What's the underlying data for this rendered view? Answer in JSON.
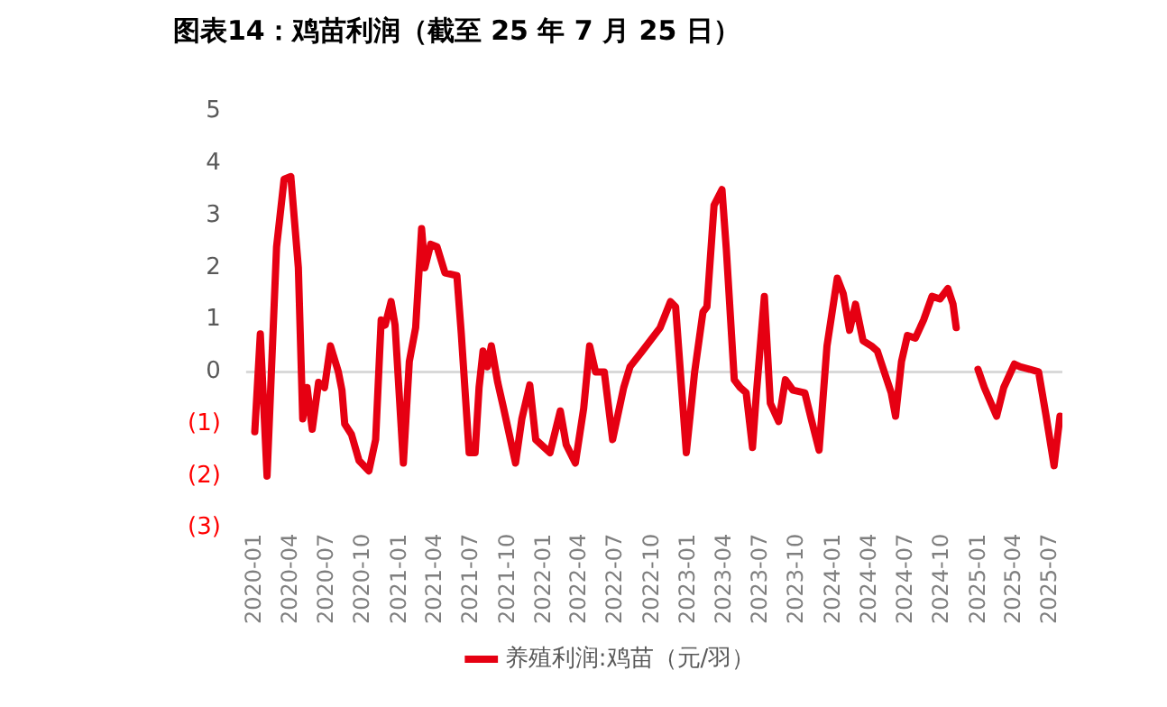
{
  "chart_data": {
    "type": "line",
    "title": "图表14：鸡苗利润（截至 25 年 7 月 25 日）",
    "x": [
      "2020-01-01",
      "2020-01-15",
      "2020-02-01",
      "2020-02-25",
      "2020-03-15",
      "2020-04-01",
      "2020-04-20",
      "2020-05-01",
      "2020-05-12",
      "2020-05-25",
      "2020-06-10",
      "2020-06-25",
      "2020-07-10",
      "2020-07-30",
      "2020-08-08",
      "2020-08-15",
      "2020-09-01",
      "2020-09-20",
      "2020-10-15",
      "2020-11-01",
      "2020-11-15",
      "2020-11-25",
      "2020-12-10",
      "2020-12-20",
      "2021-01-10",
      "2021-01-25",
      "2021-02-10",
      "2021-02-25",
      "2021-03-05",
      "2021-03-20",
      "2021-04-05",
      "2021-04-25",
      "2021-05-25",
      "2021-06-05",
      "2021-06-25",
      "2021-07-10",
      "2021-07-20",
      "2021-07-30",
      "2021-08-10",
      "2021-08-20",
      "2021-09-05",
      "2021-09-20",
      "2021-10-20",
      "2021-11-05",
      "2021-11-25",
      "2021-12-10",
      "2022-01-15",
      "2022-02-10",
      "2022-02-25",
      "2022-03-20",
      "2022-04-10",
      "2022-04-25",
      "2022-05-10",
      "2022-06-01",
      "2022-06-22",
      "2022-07-20",
      "2022-08-05",
      "2022-09-05",
      "2022-10-20",
      "2022-11-15",
      "2022-11-28",
      "2022-12-25",
      "2023-01-15",
      "2023-02-05",
      "2023-02-15",
      "2023-03-05",
      "2023-03-25",
      "2023-04-05",
      "2023-04-25",
      "2023-05-10",
      "2023-05-25",
      "2023-06-10",
      "2023-06-20",
      "2023-07-10",
      "2023-07-25",
      "2023-08-15",
      "2023-09-01",
      "2023-09-20",
      "2023-10-20",
      "2023-11-05",
      "2023-11-25",
      "2023-12-15",
      "2024-01-10",
      "2024-01-25",
      "2024-02-10",
      "2024-02-25",
      "2024-03-15",
      "2024-04-05",
      "2024-04-20",
      "2024-05-25",
      "2024-06-05",
      "2024-06-20",
      "2024-07-05",
      "2024-07-25",
      "2024-08-15",
      "2024-09-05",
      "2024-09-25",
      "2024-10-15",
      "2024-10-28",
      "2024-11-05",
      "2024-12-15",
      "2024-12-30",
      "2025-01-15",
      "2025-02-15",
      "2025-03-05",
      "2025-04-01",
      "2025-04-15",
      "2025-05-10",
      "2025-06-01",
      "2025-06-20",
      "2025-07-10",
      "2025-07-25"
    ],
    "series": [
      {
        "name": "养殖利润:鸡苗（元/羽）",
        "color": "#e60012",
        "values": [
          -1.15,
          0.73,
          -2.0,
          2.4,
          3.7,
          3.75,
          2.0,
          -0.9,
          -0.3,
          -1.1,
          -0.2,
          -0.3,
          0.5,
          0,
          -0.35,
          -1.0,
          -1.2,
          -1.7,
          -1.9,
          -1.3,
          1.0,
          0.9,
          1.35,
          0.9,
          -1.75,
          0.2,
          0.85,
          2.75,
          2.0,
          2.45,
          2.4,
          1.9,
          1.85,
          0.75,
          -1.55,
          -1.55,
          -0.3,
          0.4,
          0.1,
          0.5,
          -0.2,
          -0.7,
          -1.75,
          -0.9,
          -0.25,
          -1.3,
          -1.55,
          -0.75,
          -1.4,
          -1.75,
          -0.7,
          0.5,
          0,
          0,
          -1.3,
          -0.3,
          0.1,
          0.4,
          0.85,
          1.35,
          1.25,
          -1.55,
          0,
          1.15,
          1.25,
          3.2,
          3.5,
          2.35,
          -0.15,
          -0.3,
          -0.4,
          -1.45,
          -0.4,
          1.45,
          -0.6,
          -0.95,
          -0.15,
          -0.35,
          -0.4,
          -0.9,
          -1.5,
          0.5,
          1.8,
          1.5,
          0.8,
          1.3,
          0.6,
          0.5,
          0.4,
          -0.4,
          -0.85,
          0.2,
          0.7,
          0.65,
          1.0,
          1.45,
          1.4,
          1.6,
          1.3,
          0.85,
          null,
          0.05,
          -0.3,
          -0.85,
          -0.3,
          0.15,
          0.1,
          0.05,
          0.0,
          -0.85,
          -1.8,
          -0.85
        ]
      }
    ],
    "xlim": [
      "2019-12-10",
      "2025-07-31"
    ],
    "xticks": [
      "2020-01",
      "2020-04",
      "2020-07",
      "2020-10",
      "2021-01",
      "2021-04",
      "2021-07",
      "2021-10",
      "2022-01",
      "2022-04",
      "2022-07",
      "2022-10",
      "2023-01",
      "2023-04",
      "2023-07",
      "2023-10",
      "2024-01",
      "2024-04",
      "2024-07",
      "2024-10",
      "2025-01",
      "2025-04",
      "2025-07"
    ],
    "ylim": [
      -3,
      5
    ],
    "yticks": [
      {
        "value": -3,
        "label": "(3)"
      },
      {
        "value": -2,
        "label": "(2)"
      },
      {
        "value": -1,
        "label": "(1)"
      },
      0,
      1,
      2,
      3,
      4,
      5
    ],
    "ref_lines": [
      {
        "axis": "y",
        "value": 0,
        "color": "#d9d9d9"
      }
    ],
    "legend": "bottom",
    "marker": "none",
    "line_style": "solid"
  }
}
